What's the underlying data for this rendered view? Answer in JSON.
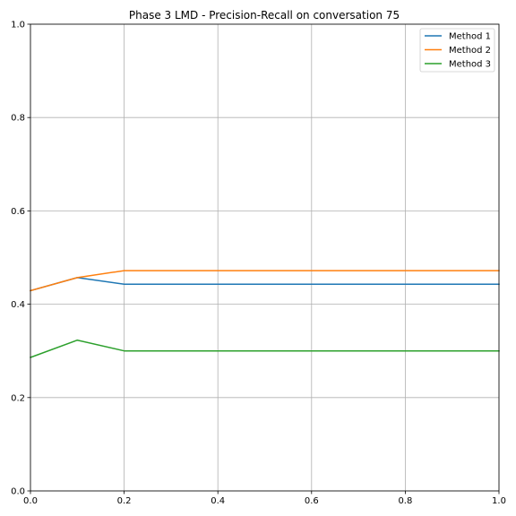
{
  "chart_data": {
    "type": "line",
    "title": "Phase 3 LMD - Precision-Recall on conversation 75",
    "xlabel": "",
    "ylabel": "",
    "xlim": [
      0,
      1
    ],
    "ylim": [
      0,
      1
    ],
    "grid": true,
    "legend_position": "top-right",
    "x_ticks": [
      "0.0",
      "0.2",
      "0.4",
      "0.6",
      "0.8",
      "1.0"
    ],
    "y_ticks": [
      "0.0",
      "0.2",
      "0.4",
      "0.6",
      "0.8",
      "1.0"
    ],
    "x": [
      0.0,
      0.1,
      0.2,
      0.3,
      0.4,
      0.5,
      0.6,
      0.7,
      0.8,
      0.9,
      1.0
    ],
    "series": [
      {
        "name": "Method 1",
        "color": "#1f77b4",
        "values": [
          0.429,
          0.457,
          0.443,
          0.443,
          0.443,
          0.443,
          0.443,
          0.443,
          0.443,
          0.443,
          0.443
        ]
      },
      {
        "name": "Method 2",
        "color": "#ff7f0e",
        "values": [
          0.429,
          0.457,
          0.472,
          0.472,
          0.472,
          0.472,
          0.472,
          0.472,
          0.472,
          0.472,
          0.472
        ]
      },
      {
        "name": "Method 3",
        "color": "#2ca02c",
        "values": [
          0.286,
          0.323,
          0.3,
          0.3,
          0.3,
          0.3,
          0.3,
          0.3,
          0.3,
          0.3,
          0.3
        ]
      }
    ]
  }
}
